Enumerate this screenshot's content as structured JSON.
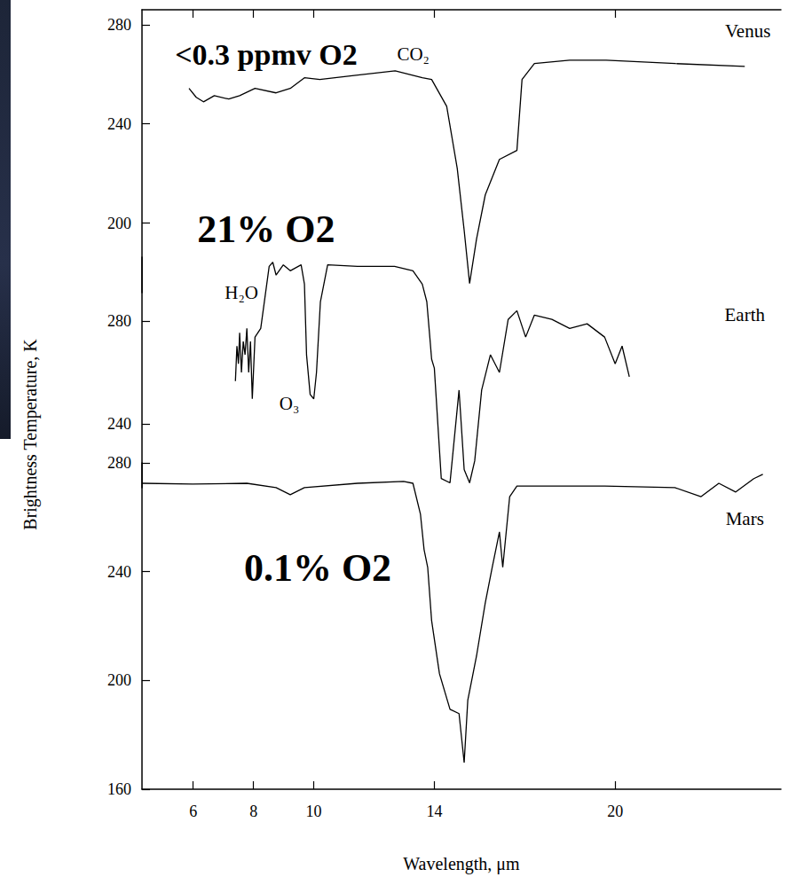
{
  "chart_data": [
    {
      "type": "line",
      "color": "#000000",
      "grid": false,
      "tick_labels": "y",
      "xlim": [
        4.3,
        25.5
      ],
      "xticks": [
        6,
        8,
        10,
        14,
        20
      ],
      "ylim": [
        172,
        286
      ],
      "yticks": [
        200,
        240,
        280
      ],
      "x": [
        5.86,
        6.1,
        6.34,
        6.7,
        7.18,
        7.54,
        8.05,
        8.75,
        9.22,
        9.69,
        10.2,
        11.4,
        12.7,
        13.6,
        13.91,
        14.41,
        14.76,
        14.99,
        15.17,
        15.4,
        15.69,
        16.16,
        16.74,
        16.91,
        17.32,
        18.49,
        19.7,
        22,
        24.3
      ],
      "values": [
        254.3,
        250.7,
        248.9,
        251.4,
        250,
        251.4,
        254.3,
        252.5,
        254.3,
        258.6,
        257.9,
        259.6,
        261.4,
        258.6,
        257.9,
        247.1,
        222.1,
        197.1,
        175.7,
        193.6,
        211.4,
        225.7,
        229.3,
        257.9,
        264.3,
        265.7,
        265.7,
        264.3,
        263.2
      ],
      "annotations": [
        {
          "text": "Venus",
          "x": 24.4,
          "y": 277.5
        },
        {
          "text": "CO₂",
          "x": 13.3,
          "y": 268
        }
      ],
      "callout": {
        "text": "<0.3 ppmv O2",
        "x": 8.42,
        "y": 268
      }
    },
    {
      "type": "line",
      "color": "#000000",
      "grid": false,
      "tick_labels": "y",
      "xlim": [
        4.3,
        25.5
      ],
      "ylim": [
        215,
        305
      ],
      "yticks": [
        240,
        280
      ],
      "x": [
        7.4,
        7.45,
        7.5,
        7.54,
        7.6,
        7.66,
        7.72,
        7.78,
        7.84,
        7.9,
        7.96,
        8.05,
        8.24,
        8.4,
        8.52,
        8.64,
        8.75,
        8.99,
        9.22,
        9.58,
        9.69,
        9.76,
        9.88,
        10.0,
        10.09,
        10.22,
        10.46,
        11.45,
        12.68,
        13.29,
        13.6,
        13.75,
        13.85,
        13.91,
        14.0,
        14.23,
        14.52,
        14.82,
        14.99,
        15.17,
        15.34,
        15.57,
        15.86,
        16.16,
        16.45,
        16.74,
        17.03,
        17.32,
        17.9,
        18.49,
        19.07,
        19.65,
        20.0,
        20.23,
        20.47
      ],
      "values": [
        256.6,
        270.3,
        263.4,
        275.5,
        260,
        272.1,
        266.9,
        277.2,
        260,
        272.1,
        249.7,
        273.8,
        277.2,
        291,
        301.4,
        303,
        298,
        302,
        299.7,
        302,
        294.5,
        266.9,
        251.4,
        249.7,
        260,
        287.6,
        302,
        301.4,
        301.4,
        299.7,
        294.5,
        287.6,
        273.8,
        265.2,
        261.7,
        218.6,
        216.9,
        253.1,
        222.1,
        216.9,
        225.5,
        253.1,
        266.9,
        260,
        280.7,
        284.1,
        273.8,
        282.4,
        280.7,
        277.2,
        279,
        273.8,
        263.4,
        270.3,
        258.3
      ],
      "annotations": [
        {
          "text": "H₂O",
          "x": 7.6,
          "y": 291
        },
        {
          "text": "O₃",
          "x": 9.19,
          "y": 248
        },
        {
          "text": "Earth",
          "x": 24.3,
          "y": 282.4
        }
      ],
      "callout": {
        "text": "21% O2",
        "x": 8.42,
        "y": 315.9
      }
    },
    {
      "type": "line",
      "color": "#000000",
      "grid": false,
      "xlabel": "Wavelength, μm",
      "ylabel": "Brightness Temperature, K",
      "xlim": [
        4.3,
        25.5
      ],
      "xticks": [
        6,
        8,
        10,
        14,
        20
      ],
      "ylim": [
        160,
        280
      ],
      "yticks": [
        160,
        200,
        240,
        280
      ],
      "x": [
        4.3,
        5.98,
        7.78,
        8.75,
        9.22,
        9.69,
        11.45,
        12.98,
        13.29,
        13.54,
        13.66,
        13.78,
        13.91,
        14.17,
        14.52,
        14.82,
        14.99,
        15.11,
        15.4,
        15.69,
        15.92,
        16.16,
        16.27,
        16.5,
        16.74,
        19.65,
        21.98,
        22.85,
        23.44,
        24.0,
        24.6,
        24.9
      ],
      "values": [
        272.5,
        272.2,
        272.5,
        270.9,
        268.3,
        270.9,
        272.5,
        273.2,
        272.5,
        261.1,
        248.1,
        241.6,
        222,
        202.5,
        189.4,
        187.8,
        169.8,
        192.7,
        209,
        228.5,
        241.6,
        254.6,
        241.6,
        267.6,
        271.5,
        271.5,
        270.9,
        267.6,
        272.5,
        269.3,
        274.2,
        275.8
      ],
      "annotations": [
        {
          "text": "Mars",
          "x": 24.3,
          "y": 259.5
        }
      ],
      "callout": {
        "text": "0.1% O2",
        "x": 10.13,
        "y": 241.5
      }
    }
  ]
}
